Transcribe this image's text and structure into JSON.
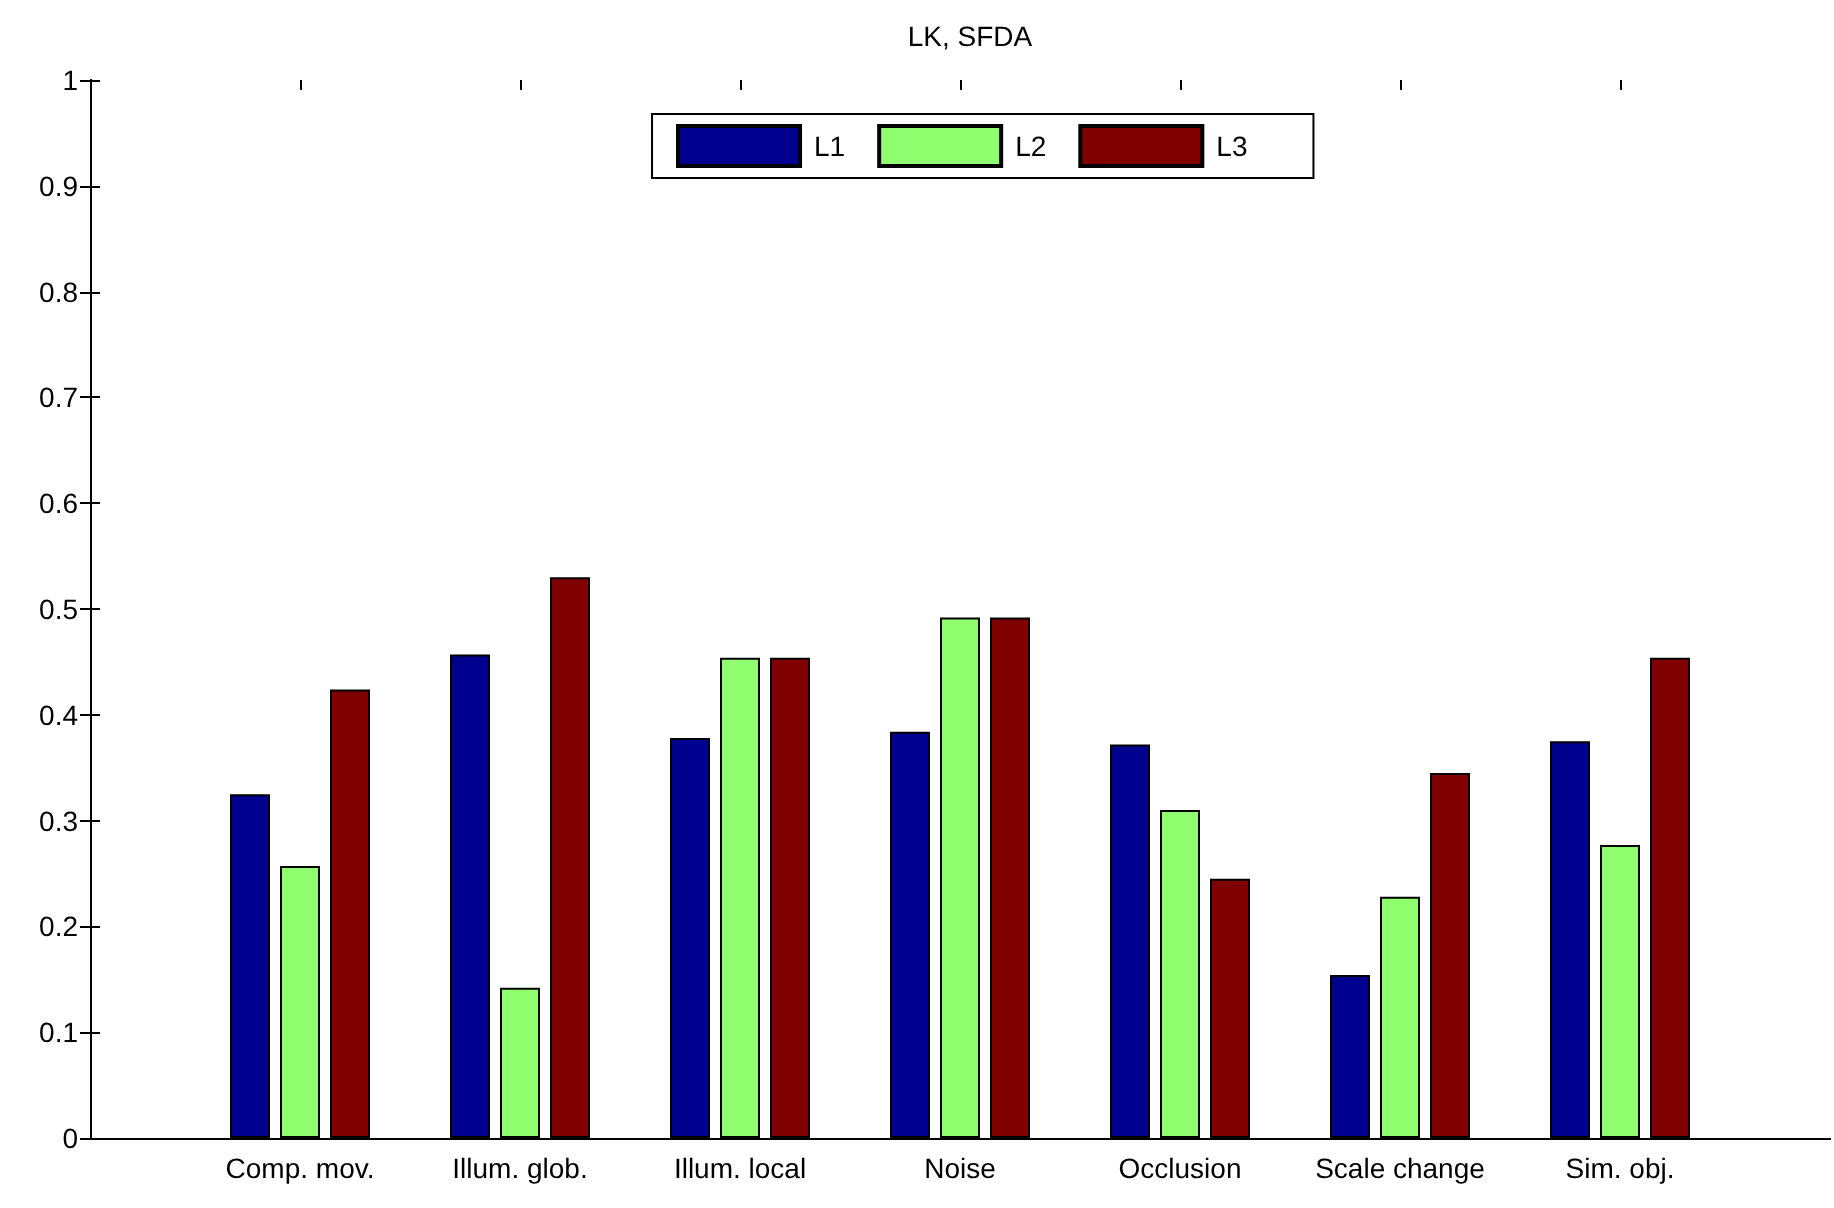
{
  "chart_data": {
    "type": "bar",
    "title": "LK, SFDA",
    "categories": [
      "Comp. mov.",
      "Illum. glob.",
      "Illum. local",
      "Noise",
      "Occlusion",
      "Scale change",
      "Sim. obj."
    ],
    "series": [
      {
        "name": "L1",
        "color": "#00008f",
        "values": [
          0.325,
          0.457,
          0.378,
          0.384,
          0.372,
          0.154,
          0.375
        ]
      },
      {
        "name": "L2",
        "color": "#8fff70",
        "values": [
          0.257,
          0.142,
          0.454,
          0.492,
          0.31,
          0.228,
          0.277
        ]
      },
      {
        "name": "L3",
        "color": "#800000",
        "values": [
          0.424,
          0.53,
          0.454,
          0.492,
          0.245,
          0.345,
          0.454
        ]
      }
    ],
    "ylim": [
      0,
      1
    ],
    "yticks": [
      0,
      0.1,
      0.2,
      0.3,
      0.4,
      0.5,
      0.6,
      0.7,
      0.8,
      0.9,
      1
    ],
    "legend": "top"
  }
}
